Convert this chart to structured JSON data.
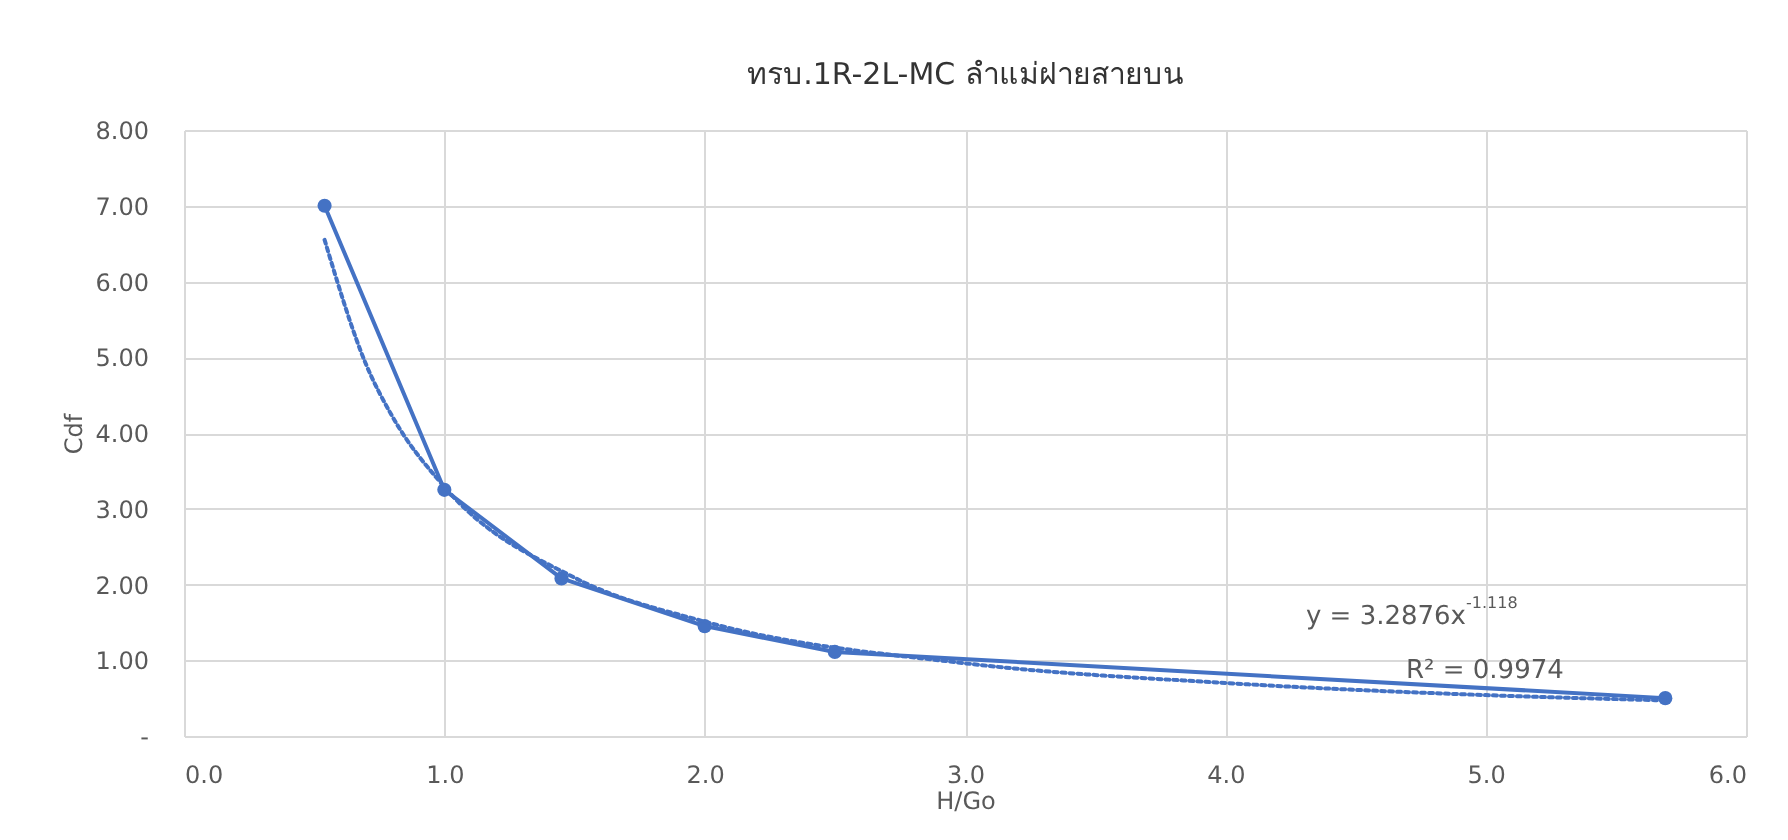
{
  "chart_data": {
    "type": "line",
    "title": "ทรบ.1R-2L-MC ลำแม่ฝายสายบน",
    "xlabel": "H/Go",
    "ylabel": "Cdf",
    "series": [
      {
        "type": "line",
        "color": "#4472c4",
        "marker": "circle",
        "line_style": "solid",
        "x": [
          0.54,
          1.0,
          1.45,
          2.0,
          2.5,
          5.69
        ],
        "values": [
          7.0,
          3.25,
          2.08,
          1.45,
          1.11,
          0.5
        ]
      },
      {
        "type": "line",
        "color": "#4472c4",
        "marker": "none",
        "line_style": "dotted",
        "x": [
          0.54,
          0.7,
          0.8,
          1.0,
          1.5,
          2.0,
          3.0,
          4.0,
          5.0,
          5.69
        ],
        "values": [
          6.55,
          4.9,
          4.22,
          3.29,
          2.09,
          1.51,
          0.96,
          0.7,
          0.54,
          0.47
        ]
      }
    ],
    "xlim": [
      0,
      6
    ],
    "xticks": [
      {
        "value": 0,
        "label": "0.0"
      },
      {
        "value": 1,
        "label": "1.0"
      },
      {
        "value": 2,
        "label": "2.0"
      },
      {
        "value": 3,
        "label": "3.0"
      },
      {
        "value": 4,
        "label": "4.0"
      },
      {
        "value": 5,
        "label": "5.0"
      },
      {
        "value": 6,
        "label": "6.0"
      }
    ],
    "ylim": [
      0,
      8
    ],
    "yticks": [
      {
        "value": 0,
        "label": "-"
      },
      {
        "value": 1,
        "label": "1.00"
      },
      {
        "value": 2,
        "label": "2.00"
      },
      {
        "value": 3,
        "label": "3.00"
      },
      {
        "value": 4,
        "label": "4.00"
      },
      {
        "value": 5,
        "label": "5.00"
      },
      {
        "value": 6,
        "label": "6.00"
      },
      {
        "value": 7,
        "label": "7.00"
      },
      {
        "value": 8,
        "label": "8.00"
      }
    ],
    "grid": true,
    "legend": false,
    "annotations": [
      "y = 3.2876x$^{-1.118}$",
      "R² = 0.9974"
    ]
  }
}
